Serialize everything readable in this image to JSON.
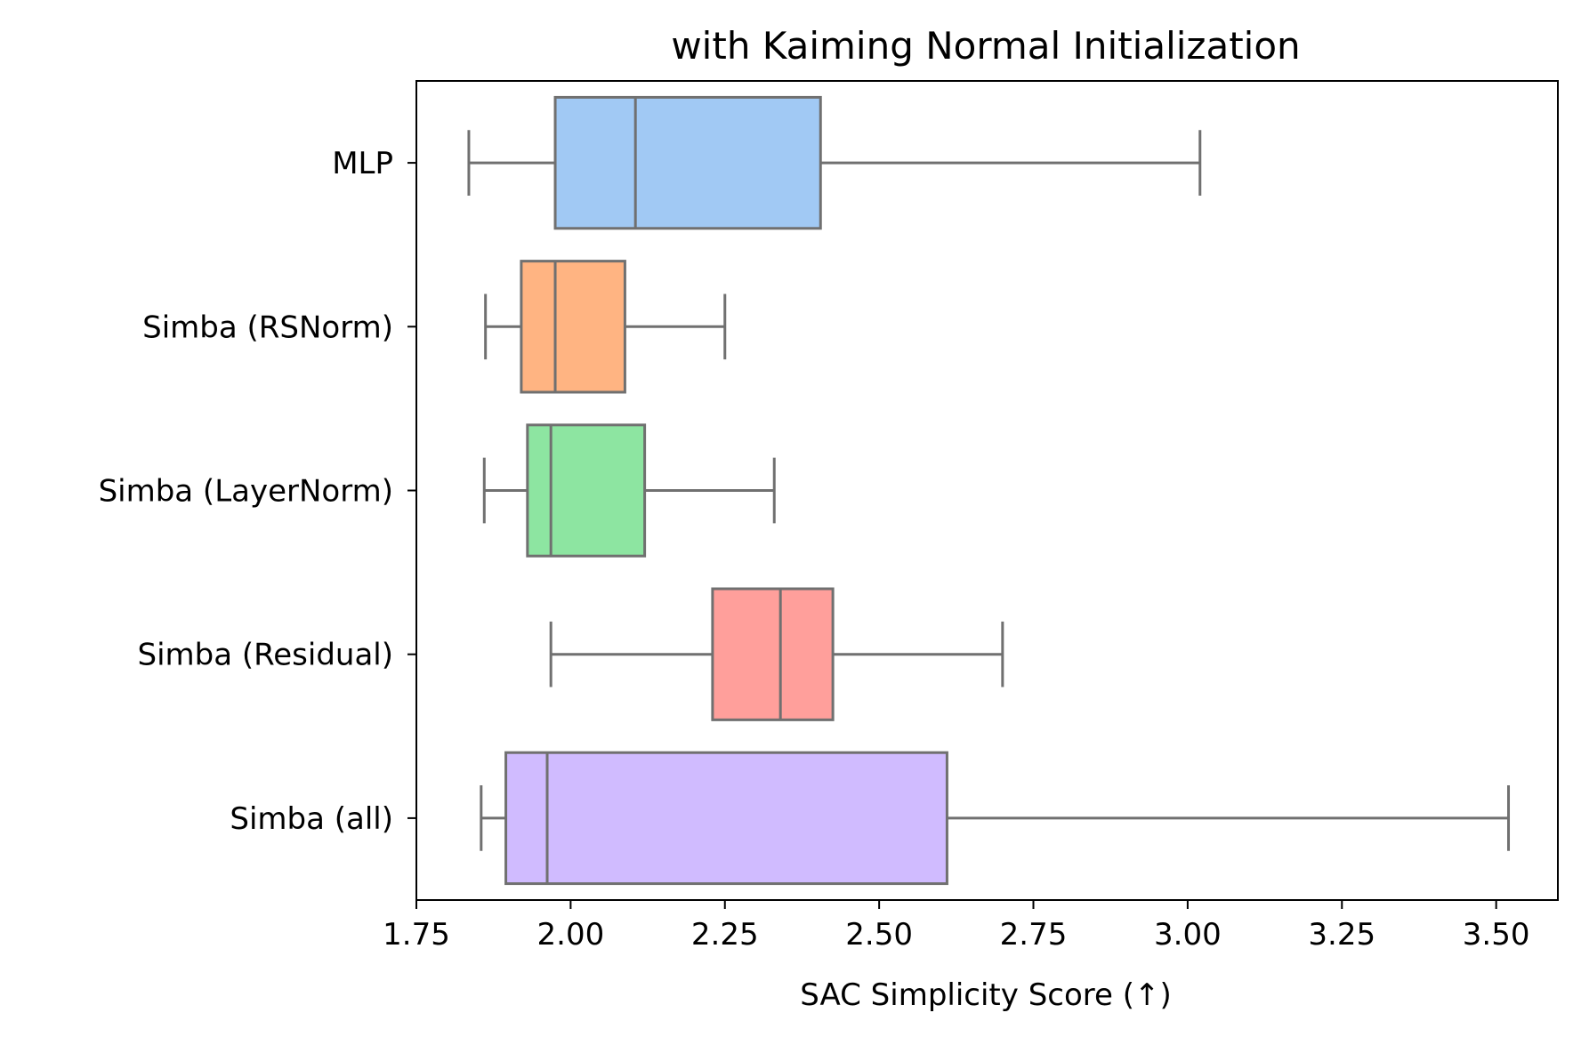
{
  "chart_data": {
    "type": "boxplot",
    "orientation": "horizontal",
    "title": "with Kaiming Normal Initialization",
    "xlabel": "SAC Simplicity Score (↑)",
    "ylabel": "",
    "xlim": [
      1.75,
      3.6
    ],
    "xticks": [
      "1.75",
      "2.00",
      "2.25",
      "2.50",
      "2.75",
      "3.00",
      "3.25",
      "3.50"
    ],
    "grid": false,
    "line_color": "#707070",
    "categories": [
      "MLP",
      "Simba (RSNorm)",
      "Simba (LayerNorm)",
      "Simba (Residual)",
      "Simba (all)"
    ],
    "series": [
      {
        "category": "MLP",
        "whisker_low": 1.835,
        "q1": 1.975,
        "median": 2.105,
        "q3": 2.405,
        "whisker_high": 3.02,
        "color": "#a1c9f4"
      },
      {
        "category": "Simba (RSNorm)",
        "whisker_low": 1.862,
        "q1": 1.92,
        "median": 1.975,
        "q3": 2.088,
        "whisker_high": 2.25,
        "color": "#ffb482"
      },
      {
        "category": "Simba (LayerNorm)",
        "whisker_low": 1.86,
        "q1": 1.93,
        "median": 1.968,
        "q3": 2.12,
        "whisker_high": 2.33,
        "color": "#8de5a1"
      },
      {
        "category": "Simba (Residual)",
        "whisker_low": 1.968,
        "q1": 2.23,
        "median": 2.34,
        "q3": 2.425,
        "whisker_high": 2.7,
        "color": "#ff9f9b"
      },
      {
        "category": "Simba (all)",
        "whisker_low": 1.855,
        "q1": 1.895,
        "median": 1.962,
        "q3": 2.61,
        "whisker_high": 3.52,
        "color": "#d0bbff"
      }
    ]
  }
}
